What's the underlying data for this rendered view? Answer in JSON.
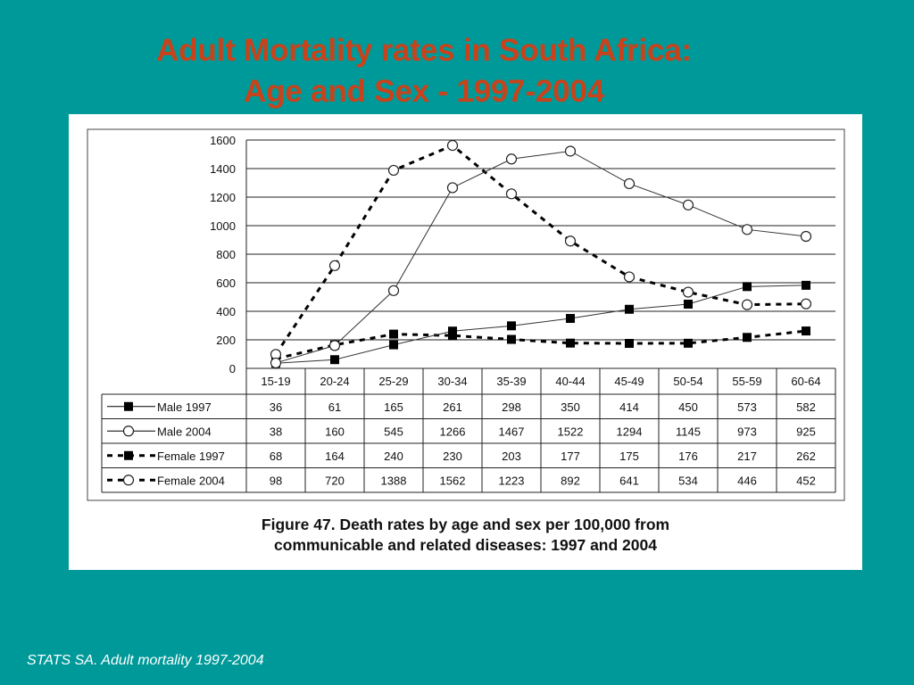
{
  "slide": {
    "title_line1": "Adult Mortality rates in South Africa:",
    "title_line2": "Age and Sex - 1997-2004",
    "footer": "STATS SA. Adult mortality 1997-2004"
  },
  "figure": {
    "caption_line1": "Figure 47. Death rates by age and sex per 100,000 from",
    "caption_line2": "communicable and related diseases: 1997 and 2004"
  },
  "chart_data": {
    "type": "line",
    "title": "",
    "xlabel": "",
    "ylabel": "",
    "ylim": [
      0,
      1600
    ],
    "yticks": [
      0,
      200,
      400,
      600,
      800,
      1000,
      1200,
      1400,
      1600
    ],
    "grid": true,
    "legend": "table-left",
    "categories": [
      "15-19",
      "20-24",
      "25-29",
      "30-34",
      "35-39",
      "40-44",
      "45-49",
      "50-54",
      "55-59",
      "60-64"
    ],
    "series": [
      {
        "name": "Male 1997",
        "line": "solid",
        "marker": "filled-square",
        "values": [
          36,
          61,
          165,
          261,
          298,
          350,
          414,
          450,
          573,
          582
        ]
      },
      {
        "name": "Male 2004",
        "line": "solid",
        "marker": "open-circle",
        "values": [
          38,
          160,
          545,
          1266,
          1467,
          1522,
          1294,
          1145,
          973,
          925
        ]
      },
      {
        "name": "Female 1997",
        "line": "dashed",
        "marker": "filled-square",
        "values": [
          68,
          164,
          240,
          230,
          203,
          177,
          175,
          176,
          217,
          262
        ]
      },
      {
        "name": "Female 2004",
        "line": "dashed",
        "marker": "open-circle",
        "values": [
          98,
          720,
          1388,
          1562,
          1223,
          892,
          641,
          534,
          446,
          452
        ]
      }
    ]
  }
}
